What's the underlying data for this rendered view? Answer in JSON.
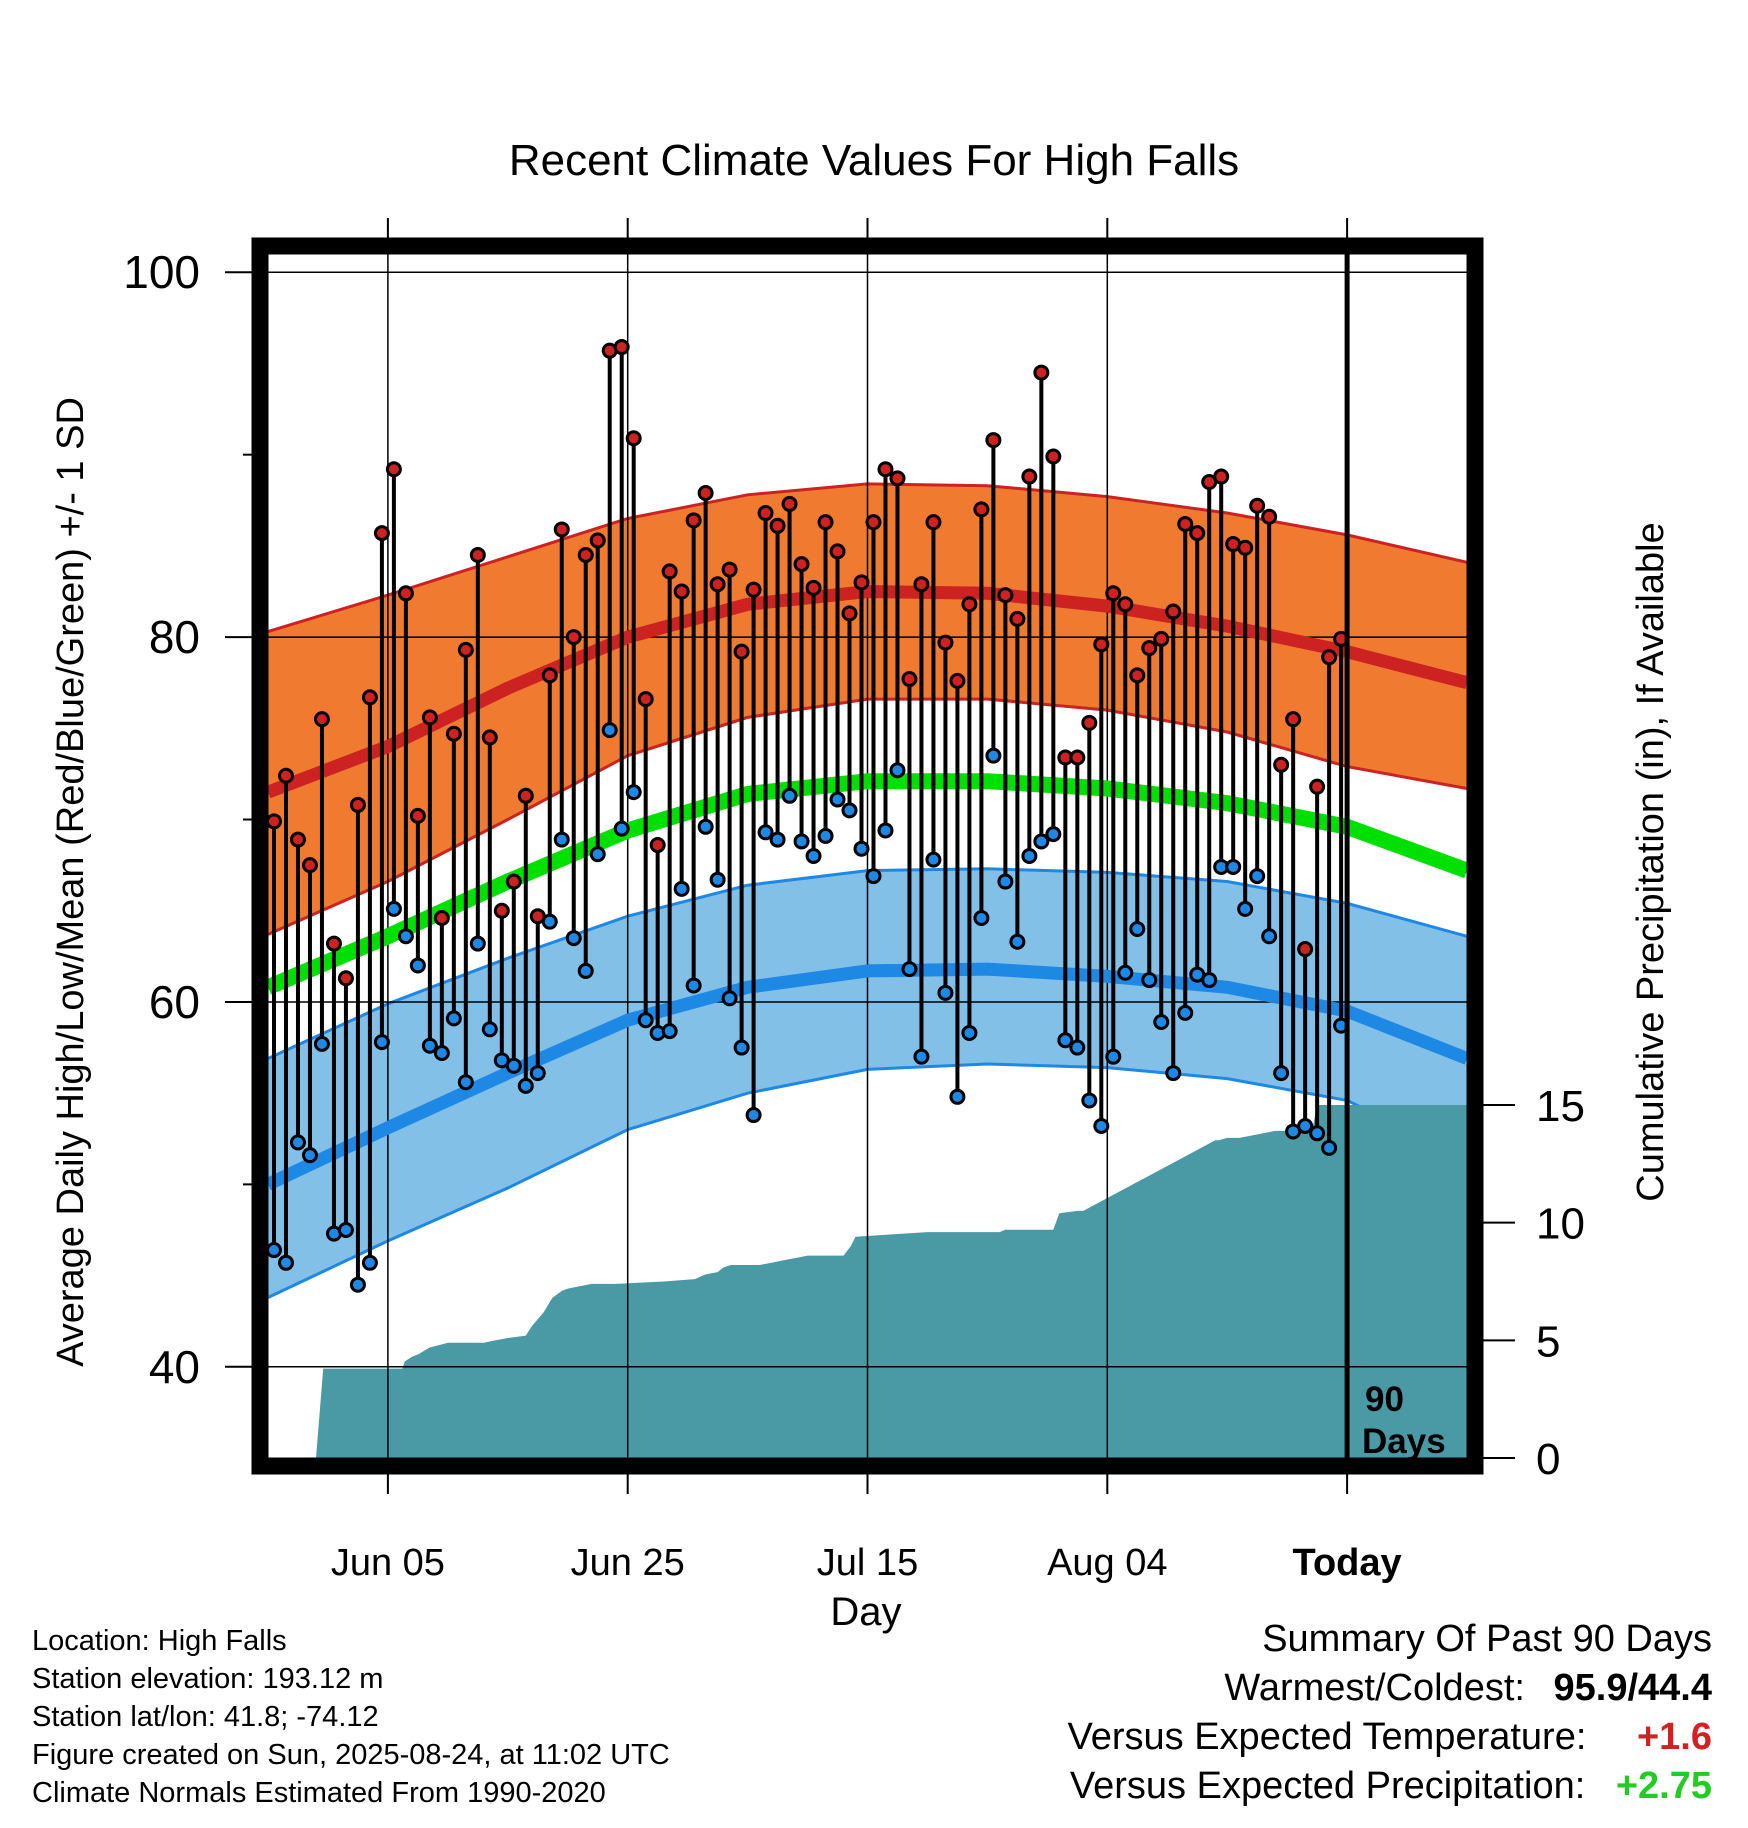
{
  "chart_data": {
    "type": "line",
    "title": "Recent Climate Values For High Falls",
    "xlabel": "Day",
    "ylabel_left": "Average Daily High/Low/Mean (Red/Blue/Green) +/- 1 SD",
    "ylabel_right": "Cumulative Precipitation (in), If Available",
    "x_range_days": [
      0,
      100
    ],
    "today_day": 90,
    "today_annotation": [
      "90",
      "Days"
    ],
    "x_ticks": [
      {
        "day": 10,
        "label": "Jun 05"
      },
      {
        "day": 30,
        "label": "Jun 25"
      },
      {
        "day": 50,
        "label": "Jul 15"
      },
      {
        "day": 70,
        "label": "Aug 04"
      },
      {
        "day": 90,
        "label": "Today"
      }
    ],
    "ylim_temp": [
      35,
      101
    ],
    "y_ticks_temp": [
      40,
      60,
      80,
      100
    ],
    "ylim_precip": [
      0,
      15
    ],
    "y_ticks_precip": [
      0,
      5,
      10,
      15
    ],
    "grid": true,
    "colors": {
      "high": "#cc2222",
      "high_band": "#f07a30",
      "low": "#1e88e5",
      "low_band": "#82c0e8",
      "mean": "#00e000",
      "precip": "#4a9aa5",
      "frame": "#000000"
    },
    "normals": {
      "days": [
        0,
        10,
        20,
        30,
        40,
        50,
        60,
        70,
        80,
        90,
        100
      ],
      "high_mean": [
        71.5,
        74.0,
        77.2,
        80.0,
        81.8,
        82.5,
        82.4,
        81.7,
        80.6,
        79.2,
        77.5
      ],
      "high_upper": [
        80.3,
        82.3,
        84.4,
        86.5,
        87.8,
        88.4,
        88.3,
        87.7,
        86.8,
        85.6,
        84.1
      ],
      "high_lower": [
        63.7,
        66.6,
        70.0,
        73.5,
        75.6,
        76.6,
        76.6,
        76.0,
        74.8,
        72.9,
        71.7
      ],
      "mean_line": [
        60.8,
        63.6,
        66.6,
        69.4,
        71.4,
        72.1,
        72.1,
        71.7,
        70.9,
        69.6,
        67.2
      ],
      "low_mean": [
        50.0,
        53.1,
        56.1,
        59.0,
        60.8,
        61.7,
        61.8,
        61.4,
        60.8,
        59.5,
        56.9
      ],
      "low_upper": [
        56.9,
        59.9,
        62.4,
        64.7,
        66.4,
        67.2,
        67.3,
        67.1,
        66.6,
        65.4,
        63.6
      ],
      "low_lower": [
        43.8,
        46.9,
        49.8,
        53.0,
        55.0,
        56.3,
        56.6,
        56.4,
        55.8,
        54.6,
        51.4
      ]
    },
    "series": [
      {
        "name": "High",
        "values": [
          69.9,
          72.4,
          68.9,
          67.5,
          75.5,
          63.2,
          61.3,
          70.8,
          76.7,
          85.7,
          89.2,
          82.4,
          70.2,
          75.6,
          64.6,
          74.7,
          79.3,
          84.5,
          74.5,
          65.0,
          66.6,
          71.3,
          64.7,
          77.9,
          85.9,
          80.0,
          84.5,
          85.3,
          95.7,
          95.9,
          90.9,
          76.6,
          68.6,
          83.6,
          82.5,
          86.4,
          87.9,
          82.9,
          83.7,
          79.2,
          82.6,
          86.8,
          86.1,
          87.3,
          84.0,
          82.7,
          86.3,
          84.7,
          81.3,
          83.0,
          86.3,
          89.2,
          88.7,
          77.7,
          82.9,
          86.3,
          79.7,
          77.6,
          81.8,
          87.0,
          90.8,
          82.3,
          81.0,
          88.8,
          94.5,
          89.9,
          73.4,
          73.4,
          75.3,
          79.6,
          82.4,
          81.8,
          77.9,
          79.4,
          79.9,
          81.4,
          86.2,
          85.7,
          88.5,
          88.8,
          85.1,
          84.9,
          87.2,
          86.6,
          73.0,
          75.5,
          62.9,
          71.8,
          78.9,
          79.9
        ]
      },
      {
        "name": "Low",
        "values": [
          46.4,
          45.7,
          52.3,
          51.6,
          57.7,
          47.3,
          47.5,
          44.5,
          45.7,
          57.8,
          65.1,
          63.6,
          62.0,
          57.6,
          57.2,
          59.1,
          55.6,
          63.2,
          58.5,
          56.8,
          56.5,
          55.4,
          56.1,
          64.4,
          68.9,
          63.5,
          61.7,
          68.1,
          74.9,
          69.5,
          71.5,
          59.0,
          58.3,
          58.4,
          66.2,
          60.9,
          69.6,
          66.7,
          60.2,
          57.5,
          53.8,
          69.3,
          68.9,
          71.3,
          68.8,
          68.0,
          69.1,
          71.1,
          70.5,
          68.4,
          66.9,
          69.4,
          72.7,
          61.8,
          57.0,
          67.8,
          60.5,
          54.8,
          58.3,
          64.6,
          73.5,
          66.6,
          63.3,
          68.0,
          68.8,
          69.2,
          57.9,
          57.5,
          54.6,
          53.2,
          57.0,
          61.6,
          64.0,
          61.2,
          58.9,
          56.1,
          59.4,
          61.5,
          61.2,
          67.4,
          67.4,
          65.1,
          66.9,
          63.6,
          56.1,
          52.9,
          53.2,
          52.8,
          52.0,
          58.7
        ]
      },
      {
        "name": "Cumulative Precipitation",
        "unit": "in",
        "x": [
          0,
          4.0,
          4.6,
          5.5,
          11.2,
          11.4,
          12.0,
          12.5,
          13.5,
          14.3,
          15.0,
          18.0,
          19.0,
          20.0,
          21.5,
          22.0,
          23.0,
          23.7,
          24.5,
          25.0,
          26.0,
          27.0,
          29.0,
          33.0,
          35.6,
          36.5,
          37.5,
          38.0,
          38.6,
          41.0,
          42.0,
          43.0,
          44.0,
          45.0,
          48.0,
          48.6,
          49.0,
          52.0,
          55.0,
          61.0,
          61.5,
          64.0,
          65.5,
          66.0,
          67.5,
          68.0,
          79.0,
          79.3,
          80.0,
          81.0,
          82.0,
          83.0,
          84.0,
          87.0,
          87.2,
          87.5,
          90.0,
          100.0
        ],
        "values": [
          0,
          0,
          3.8,
          3.8,
          3.8,
          4.1,
          4.3,
          4.4,
          4.7,
          4.8,
          4.9,
          4.9,
          5.0,
          5.1,
          5.2,
          5.6,
          6.2,
          6.8,
          7.1,
          7.2,
          7.3,
          7.4,
          7.4,
          7.5,
          7.6,
          7.8,
          7.9,
          8.1,
          8.2,
          8.2,
          8.3,
          8.4,
          8.5,
          8.6,
          8.6,
          9.0,
          9.4,
          9.5,
          9.6,
          9.6,
          9.7,
          9.7,
          9.7,
          10.4,
          10.5,
          10.5,
          13.5,
          13.5,
          13.6,
          13.6,
          13.7,
          13.8,
          13.9,
          13.9,
          14.2,
          15.0,
          15.0,
          15.0
        ]
      }
    ]
  },
  "info": {
    "location": "Location: High Falls",
    "elevation": "Station elevation: 193.12 m",
    "latlon": "Station lat/lon: 41.8; -74.12",
    "created": "Figure created on Sun, 2025-08-24, at 11:02 UTC",
    "normals": "Climate Normals Estimated From 1990-2020"
  },
  "summary": {
    "heading": "Summary Of Past 90 Days",
    "warmest_coldest_label": "Warmest/Coldest:",
    "warmest_coldest_value": "95.9/44.4",
    "temp_label": "Versus Expected Temperature:",
    "temp_value": "+1.6",
    "temp_color": "#d42020",
    "precip_label": "Versus Expected Precipitation:",
    "precip_value": "+2.75",
    "precip_color": "#22cc22"
  }
}
